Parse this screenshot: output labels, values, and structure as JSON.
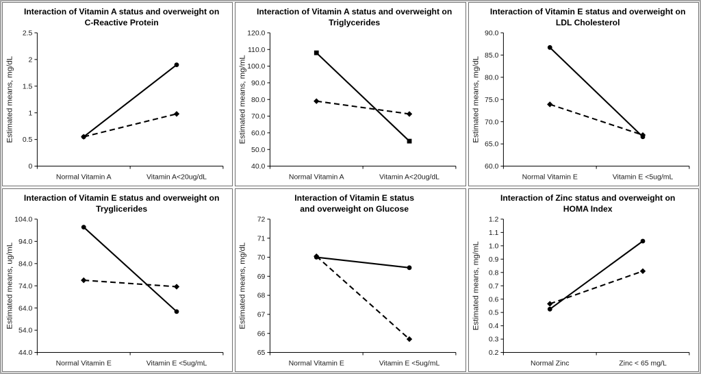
{
  "figure": {
    "background": "#ffffff",
    "outer_border_color": "#a6a6a6",
    "panel_border_color": "#6e6e6e",
    "line_color": "#000000",
    "text_color": "#1a1a1a"
  },
  "chart_data": [
    {
      "type": "line",
      "title_lines": [
        "Interaction of Vitamin A status and overweight on",
        "C-Reactive Protein"
      ],
      "ylabel": "Estimated means, mg/dL",
      "categories": [
        "Normal Vitamin A",
        "Vitamin A<20ug/dL"
      ],
      "ylim": [
        0,
        2.5
      ],
      "ytick_step": 0.5,
      "ytick_decimals": 1,
      "ytick_trim": true,
      "grid": false,
      "legend": "none",
      "series": [
        {
          "name": "solid-series",
          "line": "solid",
          "marker": "circle",
          "values": [
            0.55,
            1.9
          ]
        },
        {
          "name": "dashed-series",
          "line": "dashed",
          "marker": "diamond",
          "values": [
            0.55,
            0.98
          ]
        }
      ]
    },
    {
      "type": "line",
      "title_lines": [
        "Interaction of Vitamin A status and overweight on",
        "Triglycerides"
      ],
      "ylabel": "Estimated means, mg/mL",
      "categories": [
        "Normal Vitamin A",
        "Vitamin A<20ug/dL"
      ],
      "ylim": [
        40,
        120
      ],
      "ytick_step": 10,
      "ytick_decimals": 1,
      "ytick_trim": false,
      "grid": false,
      "legend": "none",
      "series": [
        {
          "name": "solid-series",
          "line": "solid",
          "marker": "square",
          "values": [
            108,
            55
          ]
        },
        {
          "name": "dashed-series",
          "line": "dashed",
          "marker": "diamond",
          "values": [
            79,
            71.3
          ]
        }
      ]
    },
    {
      "type": "line",
      "title_lines": [
        "Interaction of Vitamin E status and overweight on",
        "LDL Cholesterol"
      ],
      "ylabel": "Estimated means, mg/dL",
      "categories": [
        "Normal Vitamin E",
        "Vitamin E <5ug/mL"
      ],
      "ylim": [
        60,
        90
      ],
      "ytick_step": 5,
      "ytick_decimals": 1,
      "ytick_trim": false,
      "grid": false,
      "legend": "none",
      "series": [
        {
          "name": "solid-series",
          "line": "solid",
          "marker": "circle",
          "values": [
            86.7,
            66.6
          ]
        },
        {
          "name": "dashed-series",
          "line": "dashed",
          "marker": "diamond",
          "values": [
            73.9,
            67.0
          ]
        }
      ]
    },
    {
      "type": "line",
      "title_lines": [
        "Interaction of Vitamin E status and overweight on",
        "Tryglicerides"
      ],
      "ylabel": "Estimated means, ug/mL",
      "categories": [
        "Normal Vitamin E",
        "Vitamin E <5ug/mL"
      ],
      "ylim": [
        44,
        104
      ],
      "ytick_step": 10,
      "ytick_decimals": 1,
      "ytick_trim": false,
      "grid": false,
      "legend": "none",
      "series": [
        {
          "name": "solid-series",
          "line": "solid",
          "marker": "circle",
          "values": [
            100.4,
            62.4
          ]
        },
        {
          "name": "dashed-series",
          "line": "dashed",
          "marker": "diamond",
          "values": [
            76.5,
            73.6
          ]
        }
      ]
    },
    {
      "type": "line",
      "title_lines": [
        "Interaction of Vitamin E  status",
        "and overweight on Glucose"
      ],
      "ylabel": "Estimated means, mg/dL",
      "categories": [
        "Normal Vitamin E",
        "Vitamin E <5ug/mL"
      ],
      "ylim": [
        65,
        72
      ],
      "ytick_step": 1,
      "ytick_decimals": 0,
      "ytick_trim": false,
      "grid": false,
      "legend": "none",
      "series": [
        {
          "name": "solid-series",
          "line": "solid",
          "marker": "circle",
          "values": [
            70.0,
            69.45
          ]
        },
        {
          "name": "dashed-series",
          "line": "dashed",
          "marker": "diamond",
          "values": [
            70.05,
            65.7
          ]
        }
      ]
    },
    {
      "type": "line",
      "title_lines": [
        "Interaction of Zinc status and overweight on",
        "HOMA Index"
      ],
      "ylabel": "Estimated means, mg/mL",
      "categories": [
        "Normal Zinc",
        "Zinc < 65 mg/L"
      ],
      "ylim": [
        0.2,
        1.2
      ],
      "ytick_step": 0.1,
      "ytick_decimals": 1,
      "ytick_trim": false,
      "grid": false,
      "legend": "none",
      "series": [
        {
          "name": "solid-series",
          "line": "solid",
          "marker": "circle",
          "values": [
            0.525,
            1.035
          ]
        },
        {
          "name": "dashed-series",
          "line": "dashed",
          "marker": "diamond",
          "values": [
            0.565,
            0.81
          ]
        }
      ]
    }
  ]
}
